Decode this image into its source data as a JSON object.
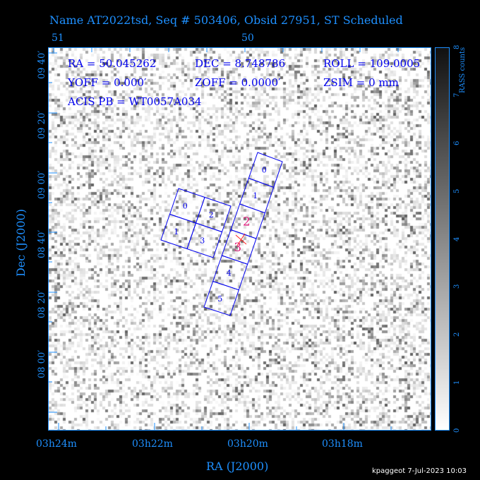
{
  "title": "Name AT2022tsd, Seq # 503406, Obsid 27951, ST Scheduled",
  "info": {
    "ra": "RA = 50.045262",
    "dec": "DEC = 8.748786",
    "roll": "ROLL = 109.0005",
    "yoff": "YOFF =    0.000′",
    "zoff": "ZOFF =  0.0000′",
    "zsim": "ZSIM = 0 mm",
    "acis_pb": "ACIS PB = WT0057A034"
  },
  "chart_data": {
    "type": "heatmap",
    "title": "Name AT2022tsd, Seq # 503406, Obsid 27951, ST Scheduled",
    "xlabel": "RA (J2000)",
    "ylabel": "Dec (J2000)",
    "x_tick_labels": [
      "03h24m",
      "03h22m",
      "03h20m",
      "03h18m"
    ],
    "top_tick_labels": [
      "51",
      "50"
    ],
    "y_tick_labels": [
      "08 00′",
      "08 20′",
      "08 40′",
      "09 00′",
      "09 20′",
      "09 40′"
    ],
    "colorbar": {
      "label": "RASS counts",
      "range": [
        0,
        8
      ],
      "ticks": [
        "0",
        "1",
        "2",
        "3",
        "4",
        "5",
        "6",
        "7",
        "8"
      ],
      "colormap": "gray reversed"
    },
    "acis_i_chips": [
      "0",
      "1",
      "2",
      "3"
    ],
    "acis_s_chips": [
      "0",
      "1",
      "2",
      "3",
      "4",
      "5"
    ],
    "highlighted_chips": [
      "2",
      "3"
    ],
    "aimpoint_marker": "x",
    "colors": {
      "axes": "#1e90ff",
      "chips": "#0000ee",
      "highlight": "#e0207f"
    }
  },
  "footer": "kpaggeot   7-Jul-2023 10:03"
}
